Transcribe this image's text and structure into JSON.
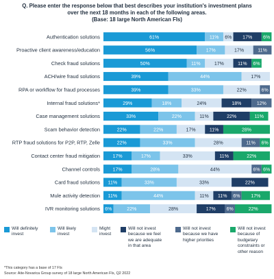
{
  "header": {
    "title_line1": "Q. Please enter the response below that best describes your institution's investment plans",
    "title_line2": "over the next 18 months in each of the following areas.",
    "title_line3": "(Base: 18 large North American FIs)"
  },
  "chart_data": {
    "type": "bar",
    "orientation": "horizontal",
    "stacked": true,
    "percent": true,
    "categories": [
      "Authentication solutions",
      "Proactive client awareness/education",
      "Check fraud solutions",
      "ACH/wire fraud solutions",
      "RPA or workflow for fraud processes",
      "Internal fraud solutions*",
      "Case management solutions",
      "Scam behavior detection",
      "RTP fraud solutions for P2P, RTP, Zelle",
      "Contact center fraud mitigation",
      "Channel controls",
      "Card fraud solutions",
      "Mule activity detection",
      "IVR monitoring solutions"
    ],
    "series": [
      {
        "name": "Will definitely invest",
        "color": "#1a9ad6",
        "values": [
          61,
          56,
          50,
          39,
          39,
          29,
          33,
          22,
          22,
          17,
          17,
          11,
          11,
          6
        ]
      },
      {
        "name": "Will likely invest",
        "color": "#7cc4ea",
        "values": [
          11,
          17,
          11,
          44,
          33,
          18,
          22,
          22,
          33,
          17,
          28,
          33,
          44,
          22
        ]
      },
      {
        "name": "Might invest",
        "color": "#d4e4f3",
        "values": [
          6,
          17,
          17,
          17,
          22,
          24,
          11,
          17,
          28,
          33,
          44,
          33,
          11,
          28
        ]
      },
      {
        "name": "Will not invest because we feel we are adequate in that area",
        "color": "#1f3e66",
        "values": [
          17,
          0,
          11,
          0,
          0,
          18,
          22,
          11,
          0,
          11,
          0,
          22,
          11,
          17
        ]
      },
      {
        "name": "Will not invest because we have higher priorities",
        "color": "#4e6a8d",
        "values": [
          0,
          11,
          0,
          0,
          6,
          12,
          0,
          0,
          11,
          0,
          6,
          0,
          6,
          6
        ]
      },
      {
        "name": "Will not invest because of budgetary constraints or other reason",
        "color": "#1aa86b",
        "values": [
          6,
          0,
          6,
          0,
          0,
          0,
          11,
          28,
          6,
          22,
          6,
          0,
          17,
          22
        ]
      }
    ],
    "xlim": [
      0,
      100
    ],
    "legend_position": "bottom"
  },
  "legend_labels": [
    "Will definitely\ninvest",
    "Will likely\ninvest",
    "Might\ninvest",
    "Will not invest\nbecause we feel\nwe are adequate\nin that area",
    "Will not invest\nbecause we have\nhigher priorities",
    "Will not invest\nbecause of\nbudgetary\nconstraints or\nother reason"
  ],
  "footnotes": {
    "note": "*This category has a base of 17 FIs",
    "source": "Source: Aite-Novarica Group survey of 18 large North American FIs, Q2 2022"
  }
}
